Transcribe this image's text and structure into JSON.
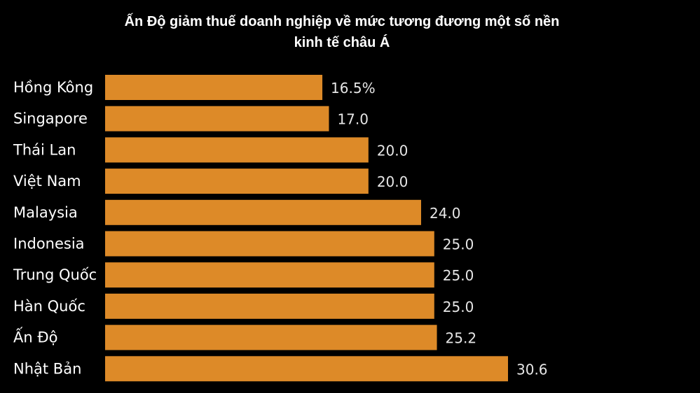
{
  "chart_data": {
    "type": "bar",
    "orientation": "horizontal",
    "title": "Ấn Độ giảm thuế doanh nghiệp về mức tương đương một số nền kinh tế châu Á",
    "title_lines": [
      "Ấn Độ giảm thuế doanh nghiệp về mức tương đương một số nền",
      "kinh tế châu Á"
    ],
    "categories": [
      "Hồng Kông",
      "Singapore",
      "Thái Lan",
      "Việt Nam",
      "Malaysia",
      "Indonesia",
      "Trung Quốc",
      "Hàn Quốc",
      "Ấn Độ",
      "Nhật Bản"
    ],
    "values": [
      16.5,
      17.0,
      20.0,
      20.0,
      24.0,
      25.0,
      25.0,
      25.0,
      25.2,
      30.6
    ],
    "data_labels": [
      "16.5%",
      "17.0",
      "20.0",
      "20.0",
      "24.0",
      "25.0",
      "25.0",
      "25.0",
      "25.2",
      "30.6"
    ],
    "xlabel": "",
    "ylabel": "",
    "xlim": [
      0,
      30.6
    ],
    "grid": false,
    "bar_color": "#DD8A28",
    "background": "#000000"
  }
}
